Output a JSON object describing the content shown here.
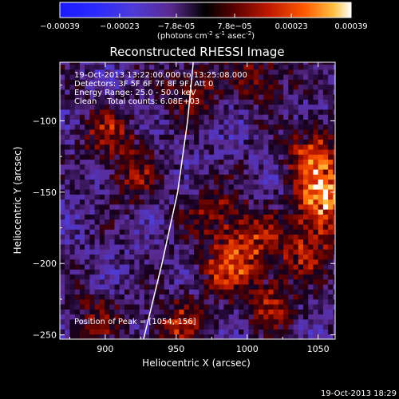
{
  "chart_data": {
    "type": "heatmap",
    "title": "Reconstructed RHESSI Image",
    "xlabel": "Heliocentric X (arcsec)",
    "ylabel": "Heliocentric Y (arcsec)",
    "xlim": [
      868,
      1062
    ],
    "ylim": [
      -253,
      -59
    ],
    "xticks": [
      900,
      950,
      1000,
      1050
    ],
    "yticks": [
      -100,
      -150,
      -200,
      -250
    ],
    "xtick_labels": [
      "900",
      "950",
      "1000",
      "1050"
    ],
    "ytick_labels": [
      "-100",
      "-150",
      "-200",
      "-250"
    ],
    "colorbar": {
      "range": [
        -0.00039,
        0.00039
      ],
      "ticks": [
        -0.00039,
        -0.00023,
        -7.8e-05,
        7.8e-05,
        0.00023,
        0.00039
      ],
      "tick_labels": [
        "-0.00039",
        "-0.00023",
        "-7.8e-05",
        "7.8e-05",
        "0.00023",
        "0.00039"
      ],
      "label_main": "(photons cm",
      "label_exp1": "-2",
      "label_mid": " s",
      "label_exp2": "-1",
      "label_end": " asec",
      "label_exp3": "-2",
      "label_close": ")"
    },
    "annotations": {
      "time": "19-Oct-2013 13:22:00.000 to 13:25:08.000",
      "detectors": "Detectors: 3F 5F 6F 7F 8F 9F, Att 0",
      "energy": "Energy Range: 25.0 - 50.0 keV",
      "clean": "Clean    Total counts: 6.08E+03",
      "peak": "Position of Peak = [1054,-156]"
    },
    "footer_date": "19-Oct-2013 18:29",
    "sources": [
      {
        "x": 1054,
        "y": -156,
        "amp": 1.0
      },
      {
        "x": 1046,
        "y": -125,
        "amp": 0.65
      },
      {
        "x": 1040,
        "y": -190,
        "amp": 0.55
      },
      {
        "x": 1000,
        "y": -185,
        "amp": 0.5
      },
      {
        "x": 985,
        "y": -205,
        "amp": 0.55
      },
      {
        "x": 1015,
        "y": -230,
        "amp": 0.45
      },
      {
        "x": 950,
        "y": -245,
        "amp": 0.5
      },
      {
        "x": 900,
        "y": -110,
        "amp": 0.45
      },
      {
        "x": 920,
        "y": -140,
        "amp": 0.4
      },
      {
        "x": 960,
        "y": -80,
        "amp": 0.45
      },
      {
        "x": 1010,
        "y": -70,
        "amp": 0.4
      },
      {
        "x": 975,
        "y": -165,
        "amp": 0.4
      },
      {
        "x": 890,
        "y": -240,
        "amp": 0.35
      }
    ],
    "limb_curve": [
      [
        927,
        -253
      ],
      [
        940,
        -200
      ],
      [
        951,
        -150
      ],
      [
        958,
        -100
      ],
      [
        962,
        -59
      ]
    ],
    "grid": false
  }
}
